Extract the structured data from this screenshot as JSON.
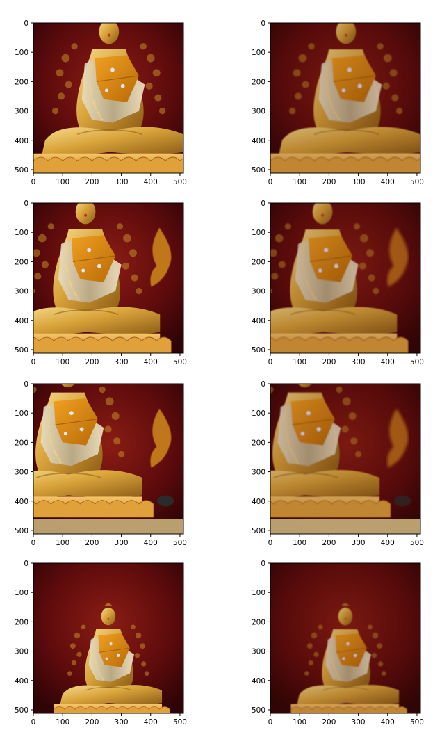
{
  "figure": {
    "layout": {
      "rows": 4,
      "columns": 2
    },
    "panels": [
      {
        "id": "row1-left",
        "content": "Golden seated Buddha statue, front view, red background",
        "tone": "bright"
      },
      {
        "id": "row1-right",
        "content": "Golden seated Buddha statue, front view, red background",
        "tone": "soft"
      },
      {
        "id": "row2-left",
        "content": "Golden seated Buddha statue, shifted left, red wall with golden flame ornament",
        "tone": "bright"
      },
      {
        "id": "row2-right",
        "content": "Golden seated Buddha statue, shifted left, red wall with golden flame ornament",
        "tone": "soft"
      },
      {
        "id": "row3-left",
        "content": "Golden seated Buddha statue, lower-left view, base platform and spotlight",
        "tone": "bright"
      },
      {
        "id": "row3-right",
        "content": "Golden seated Buddha statue, lower-left view, base platform and spotlight",
        "tone": "soft"
      },
      {
        "id": "row4-left",
        "content": "Golden seated Buddha statue, zoomed-out view in red niche",
        "tone": "bright"
      },
      {
        "id": "row4-right",
        "content": "Golden seated Buddha statue, zoomed-out view in red niche",
        "tone": "soft"
      }
    ],
    "axes": {
      "x_ticks": [
        "0",
        "100",
        "200",
        "300",
        "400",
        "500"
      ],
      "y_ticks": [
        "0",
        "100",
        "200",
        "300",
        "400",
        "500"
      ],
      "x_range": [
        0,
        512
      ],
      "y_range": [
        0,
        512
      ],
      "y_inverted": true
    },
    "colors": {
      "background_red": "#5e0b0c",
      "deep_red": "#3a0507",
      "gold": "#d9a33a",
      "gold_light": "#f3d27a",
      "orange_sash": "#e08a14",
      "silver": "#c9c3b5"
    }
  }
}
